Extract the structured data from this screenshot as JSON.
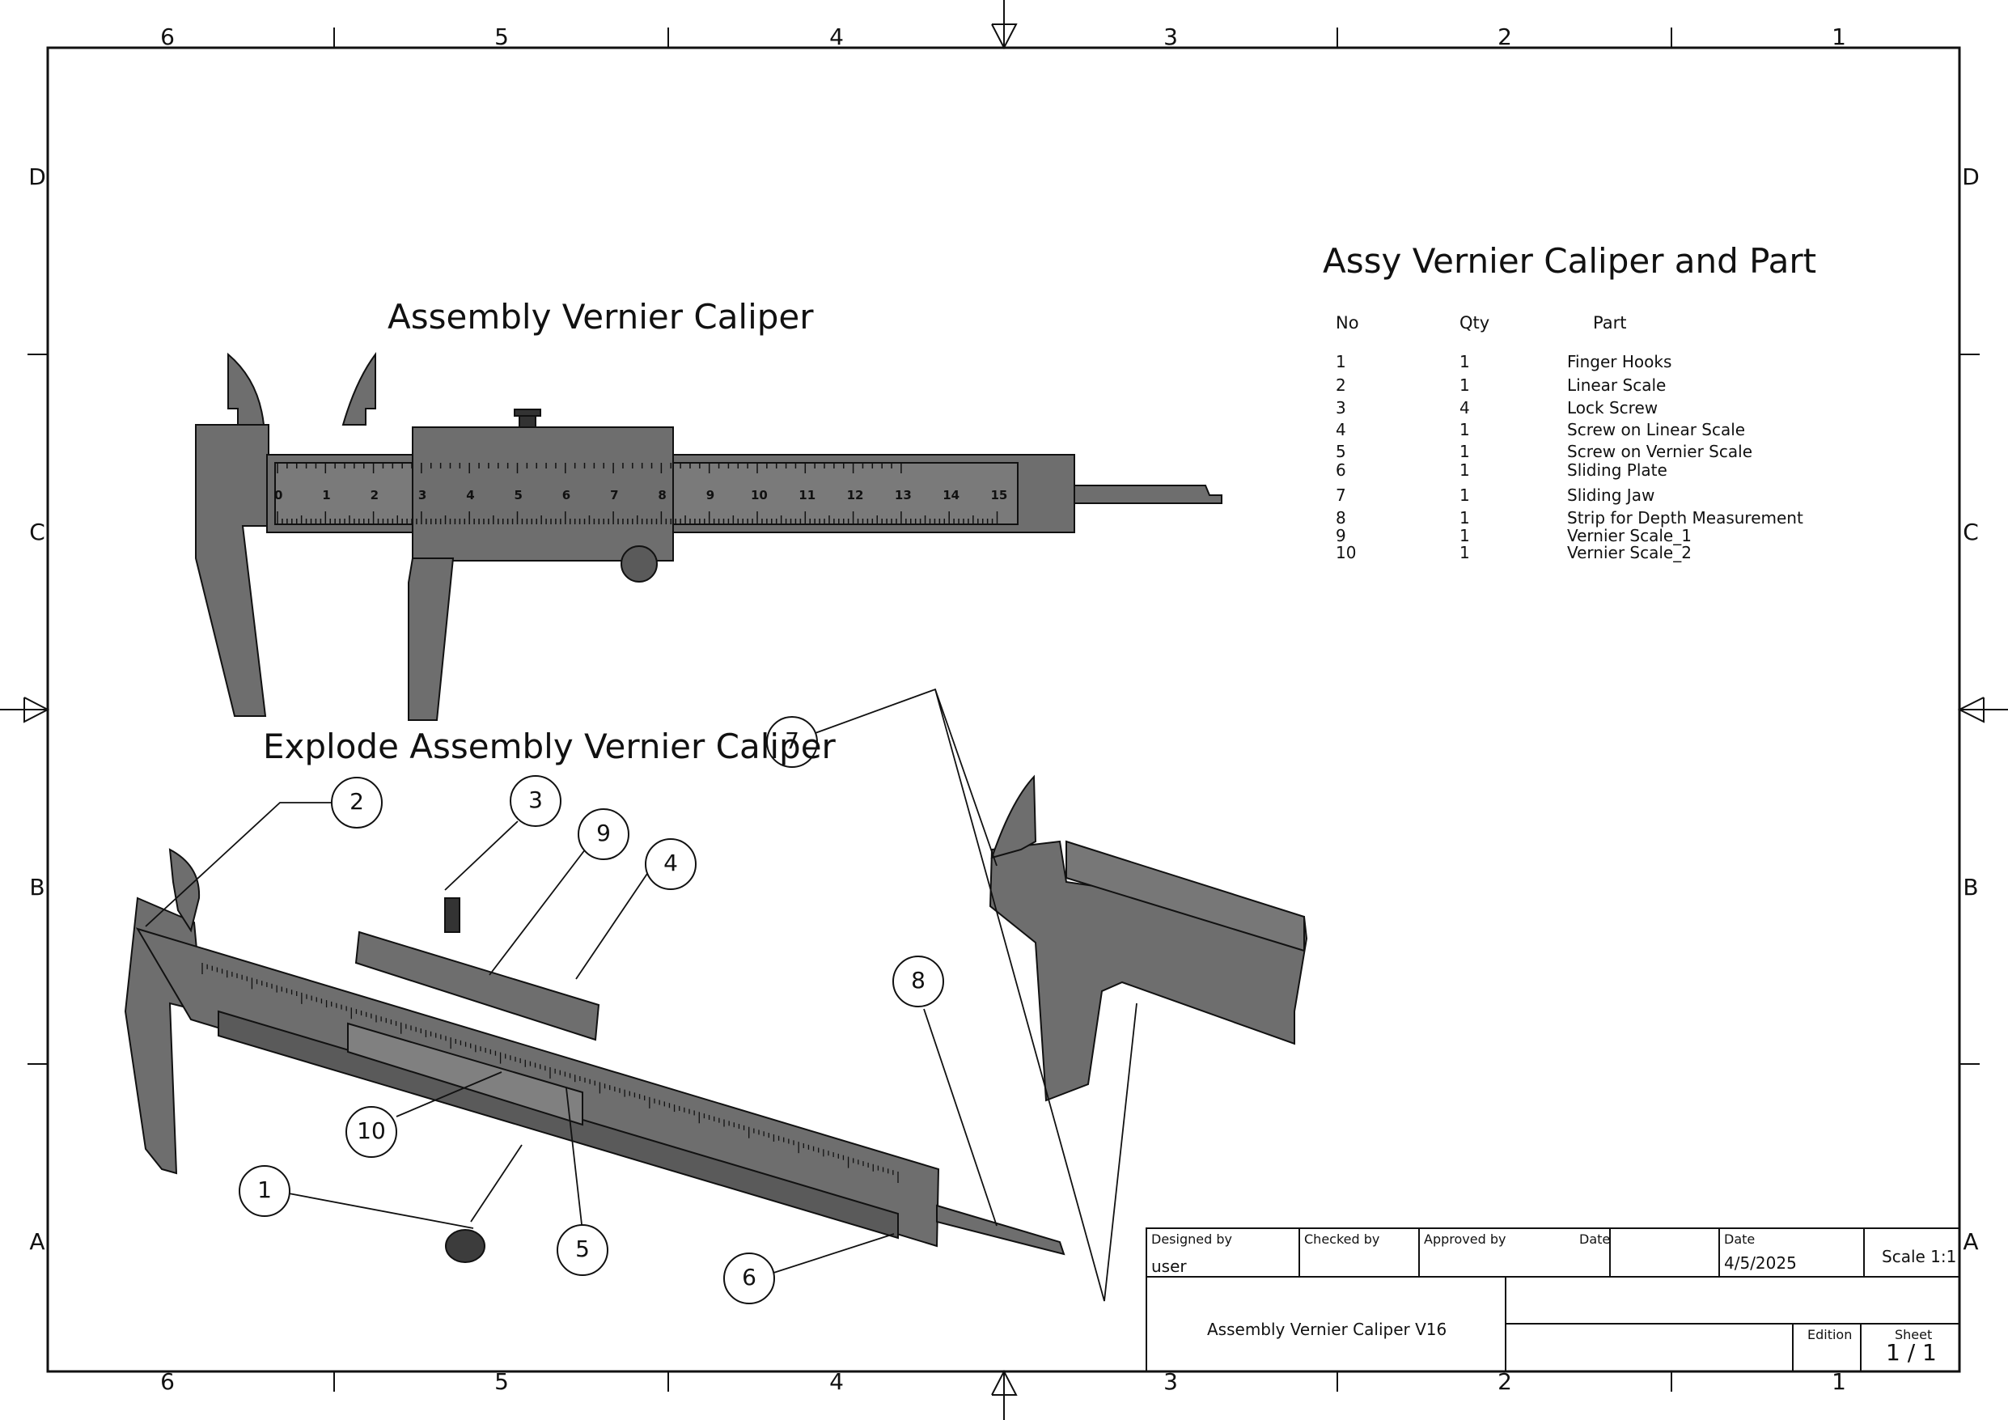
{
  "zones": {
    "columns": [
      "6",
      "5",
      "4",
      "3",
      "2",
      "1"
    ],
    "rows": [
      "D",
      "C",
      "B",
      "A"
    ]
  },
  "views": {
    "assembly_title": "Assembly Vernier Caliper",
    "explode_title": "Explode Assembly Vernier Caliper"
  },
  "scale_numbers_top": [
    "0",
    "1",
    "2",
    "3",
    "4",
    "5",
    "6",
    "7",
    "8",
    "9",
    "10",
    "11",
    "12",
    "13",
    "14",
    "15"
  ],
  "balloons": [
    "1",
    "2",
    "3",
    "4",
    "5",
    "6",
    "7",
    "8",
    "9",
    "10"
  ],
  "bom": {
    "title": "Assy Vernier Caliper  and Part",
    "headers": {
      "no": "No",
      "qty": "Qty",
      "part": "Part"
    },
    "rows": [
      {
        "no": "1",
        "qty": "1",
        "part": "Finger Hooks"
      },
      {
        "no": "2",
        "qty": "1",
        "part": "Linear Scale"
      },
      {
        "no": "3",
        "qty": "4",
        "part": "Lock Screw"
      },
      {
        "no": "4",
        "qty": "1",
        "part": "Screw on Linear Scale"
      },
      {
        "no": "5",
        "qty": "1",
        "part": "Screw on Vernier Scale"
      },
      {
        "no": "6",
        "qty": "1",
        "part": "Sliding Plate"
      },
      {
        "no": "7",
        "qty": "1",
        "part": "Sliding Jaw"
      },
      {
        "no": "8",
        "qty": "1",
        "part": "Strip for Depth Measurement"
      },
      {
        "no": "9",
        "qty": "1",
        "part": "Vernier Scale_1"
      },
      {
        "no": "10",
        "qty": "1",
        "part": "Vernier Scale_2"
      }
    ]
  },
  "title_block": {
    "designed_by_label": "Designed by",
    "designed_by": "user",
    "checked_by_label": "Checked by",
    "approved_by_label": "Approved by",
    "date_label_1": "Date",
    "date_label_2": "Date",
    "date": "4/5/2025",
    "scale": "Scale 1:1",
    "drawing_title": "Assembly Vernier Caliper V16",
    "edition_label": "Edition",
    "sheet_label": "Sheet",
    "sheet": "1 / 1"
  },
  "colors": {
    "part_fill": "#6e6e6e",
    "part_dark": "#4a4a4a",
    "line": "#111111",
    "background": "#ffffff"
  }
}
